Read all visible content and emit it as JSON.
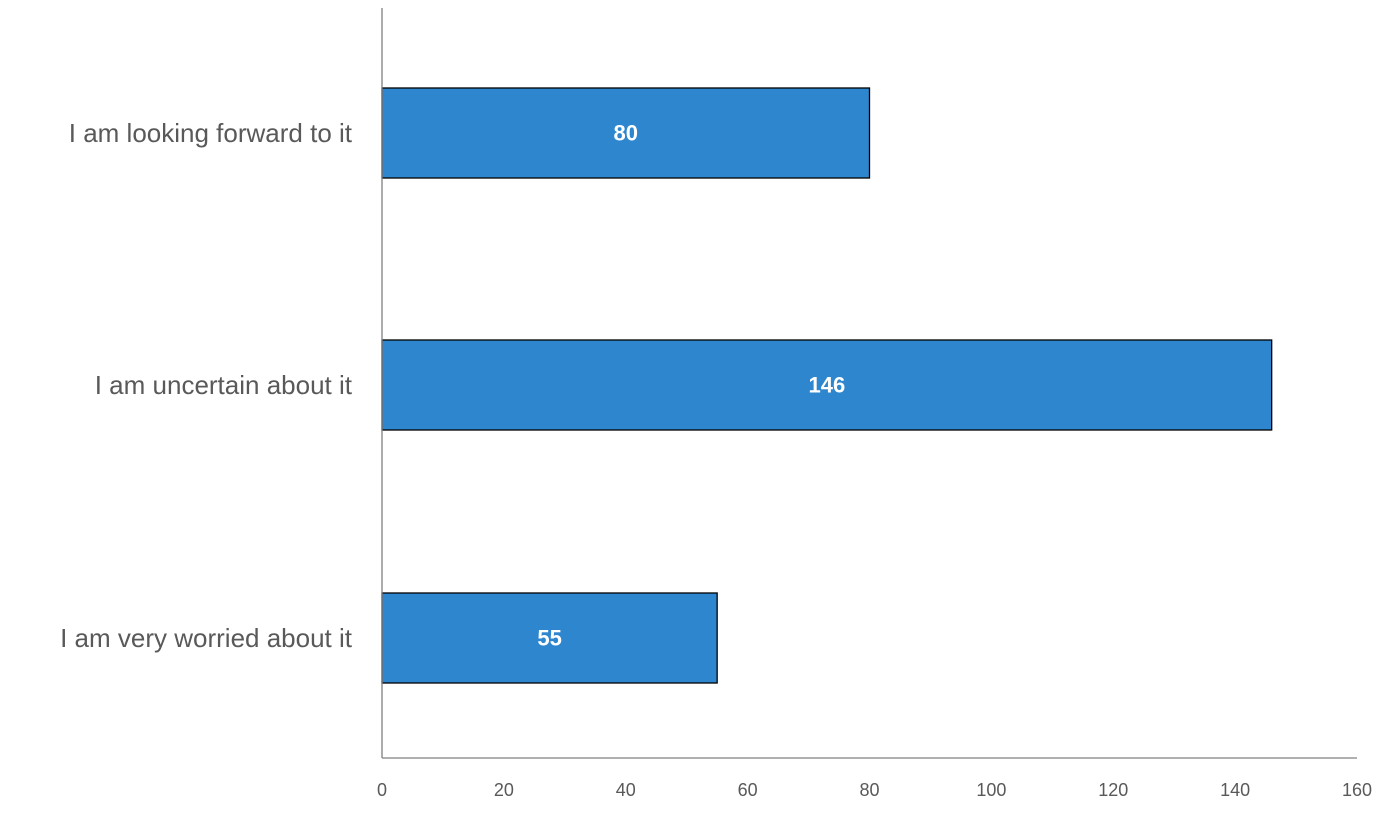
{
  "chart_data": {
    "type": "bar",
    "orientation": "horizontal",
    "title": "",
    "xlabel": "",
    "ylabel": "",
    "categories": [
      "I am looking forward to it",
      "I am uncertain about it",
      "I am very worried about it"
    ],
    "series": [
      {
        "values": [
          80,
          146,
          55
        ],
        "color": "#2E86CE",
        "data_labels": [
          "80",
          "146",
          "55"
        ]
      }
    ],
    "xlim": [
      0,
      160
    ],
    "x_ticks": [
      0,
      20,
      40,
      60,
      80,
      100,
      120,
      140,
      160
    ],
    "x_tick_labels": [
      "0",
      "20",
      "40",
      "60",
      "80",
      "100",
      "120",
      "140",
      "160"
    ],
    "grid": false,
    "legend": "none"
  }
}
